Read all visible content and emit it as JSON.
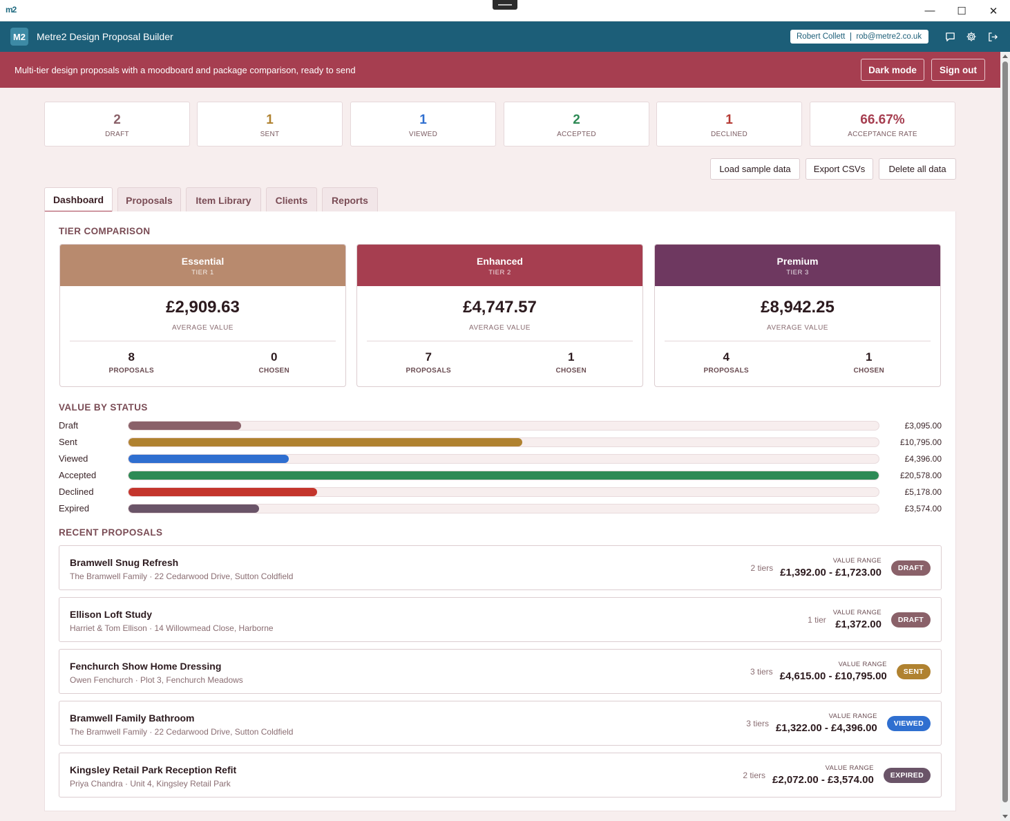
{
  "window": {
    "logo": "m2",
    "minimize": "—",
    "maximize": "☐",
    "close": "✕"
  },
  "header": {
    "badge": "M2",
    "title": "Metre2 Design Proposal Builder",
    "user_name": "Robert Collett",
    "user_email": "rob@metre2.co.uk"
  },
  "banner": {
    "text": "Multi-tier design proposals with a moodboard and package comparison, ready to send",
    "dark_mode": "Dark mode",
    "sign_out": "Sign out"
  },
  "stats": [
    {
      "value": "2",
      "label": "DRAFT",
      "color": "#8a6169"
    },
    {
      "value": "1",
      "label": "SENT",
      "color": "#b08230"
    },
    {
      "value": "1",
      "label": "VIEWED",
      "color": "#2f6fd0"
    },
    {
      "value": "2",
      "label": "ACCEPTED",
      "color": "#2e8a55"
    },
    {
      "value": "1",
      "label": "DECLINED",
      "color": "#b53a34"
    },
    {
      "value": "66.67%",
      "label": "ACCEPTANCE RATE",
      "color": "#a63e50"
    }
  ],
  "actions": {
    "load": "Load sample data",
    "export": "Export CSVs",
    "delete": "Delete all data"
  },
  "tabs": [
    "Dashboard",
    "Proposals",
    "Item Library",
    "Clients",
    "Reports"
  ],
  "sections": {
    "tier_comparison": "TIER COMPARISON",
    "value_by_status": "VALUE BY STATUS",
    "recent": "RECENT PROPOSALS"
  },
  "tiers": [
    {
      "name": "Essential",
      "sub": "TIER 1",
      "avg": "£2,909.63",
      "avg_label": "AVERAGE VALUE",
      "proposals": "8",
      "proposals_label": "PROPOSALS",
      "chosen": "0",
      "chosen_label": "CHOSEN",
      "color": "#b88a6e"
    },
    {
      "name": "Enhanced",
      "sub": "TIER 2",
      "avg": "£4,747.57",
      "avg_label": "AVERAGE VALUE",
      "proposals": "7",
      "proposals_label": "PROPOSALS",
      "chosen": "1",
      "chosen_label": "CHOSEN",
      "color": "#a63e50"
    },
    {
      "name": "Premium",
      "sub": "TIER 3",
      "avg": "£8,942.25",
      "avg_label": "AVERAGE VALUE",
      "proposals": "4",
      "proposals_label": "PROPOSALS",
      "chosen": "1",
      "chosen_label": "CHOSEN",
      "color": "#6e3860"
    }
  ],
  "value_by_status": [
    {
      "label": "Draft",
      "value": "£3,095.00",
      "fraction": 0.1504,
      "color": "#8a6169"
    },
    {
      "label": "Sent",
      "value": "£10,795.00",
      "fraction": 0.5246,
      "color": "#b08230"
    },
    {
      "label": "Viewed",
      "value": "£4,396.00",
      "fraction": 0.2136,
      "color": "#2f6fd0"
    },
    {
      "label": "Accepted",
      "value": "£20,578.00",
      "fraction": 1.0,
      "color": "#2e8a55"
    },
    {
      "label": "Declined",
      "value": "£5,178.00",
      "fraction": 0.2516,
      "color": "#c4352c"
    },
    {
      "label": "Expired",
      "value": "£3,574.00",
      "fraction": 0.1737,
      "color": "#6a5468"
    }
  ],
  "proposals": [
    {
      "title": "Bramwell Snug Refresh",
      "sub": "The Bramwell Family · 22 Cedarwood Drive, Sutton Coldfield",
      "tiers": "2 tiers",
      "range_label": "VALUE RANGE",
      "range": "£1,392.00 - £1,723.00",
      "status": "DRAFT",
      "status_color": "#8a6169"
    },
    {
      "title": "Ellison Loft Study",
      "sub": "Harriet & Tom Ellison · 14 Willowmead Close, Harborne",
      "tiers": "1 tier",
      "range_label": "VALUE RANGE",
      "range": "£1,372.00",
      "status": "DRAFT",
      "status_color": "#8a6169"
    },
    {
      "title": "Fenchurch Show Home Dressing",
      "sub": "Owen Fenchurch · Plot 3, Fenchurch Meadows",
      "tiers": "3 tiers",
      "range_label": "VALUE RANGE",
      "range": "£4,615.00 - £10,795.00",
      "status": "SENT",
      "status_color": "#b08230"
    },
    {
      "title": "Bramwell Family Bathroom",
      "sub": "The Bramwell Family · 22 Cedarwood Drive, Sutton Coldfield",
      "tiers": "3 tiers",
      "range_label": "VALUE RANGE",
      "range": "£1,322.00 - £4,396.00",
      "status": "VIEWED",
      "status_color": "#2f6fd0"
    },
    {
      "title": "Kingsley Retail Park Reception Refit",
      "sub": "Priya Chandra · Unit 4, Kingsley Retail Park",
      "tiers": "2 tiers",
      "range_label": "VALUE RANGE",
      "range": "£2,072.00 - £3,574.00",
      "status": "EXPIRED",
      "status_color": "#6a5468"
    }
  ]
}
